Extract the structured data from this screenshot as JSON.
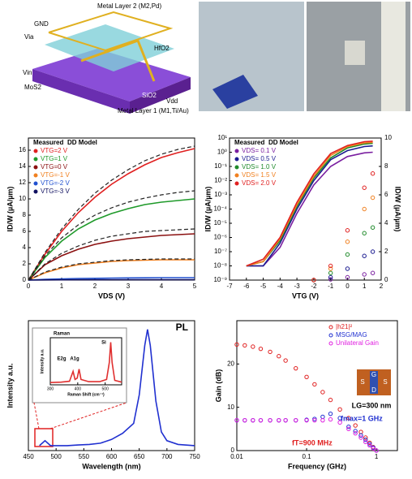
{
  "diagram": {
    "labels": [
      "Metal Layer 2 (M2,Pd)",
      "GND",
      "Via",
      "HfO2",
      "Vin",
      "MoS2",
      "SiO2",
      "Vdd",
      "Metal Layer 1 (M1,Ti/Au)"
    ]
  },
  "chart_data": [
    {
      "type": "line",
      "xlabel": "VDS (V)",
      "ylabel": "ID/W (µA/µm)",
      "legend": "upper left",
      "legend_headers": [
        "Measured",
        "DD Model"
      ],
      "x": [
        0,
        0.5,
        1,
        1.5,
        2,
        2.5,
        3,
        3.5,
        4,
        4.5,
        5
      ],
      "xlim": [
        0,
        5
      ],
      "xticks": [
        0,
        1,
        2,
        3,
        4,
        5
      ],
      "ylim": [
        0,
        17.5
      ],
      "yticks": [
        0,
        2,
        4,
        6,
        8,
        10,
        12,
        14,
        16
      ],
      "series": [
        {
          "name": "VTG=2 V",
          "color": "#e02020",
          "style": "solid",
          "values": [
            0,
            3.2,
            6,
            8.3,
            10.2,
            11.8,
            13.1,
            14.2,
            15.1,
            15.7,
            16.2
          ]
        },
        {
          "name": "VTG=1 V",
          "color": "#1f9a2a",
          "style": "solid",
          "values": [
            0,
            2.8,
            4.8,
            6.3,
            7.4,
            8.2,
            8.8,
            9.3,
            9.6,
            9.8,
            10
          ]
        },
        {
          "name": "VTG=0 V",
          "color": "#8b1010",
          "style": "solid",
          "values": [
            0,
            1.9,
            3,
            3.8,
            4.4,
            4.8,
            5.1,
            5.3,
            5.5,
            5.6,
            5.7
          ]
        },
        {
          "name": "VTG=-1 V",
          "color": "#f08020",
          "style": "solid",
          "values": [
            0,
            0.9,
            1.5,
            1.9,
            2.1,
            2.3,
            2.4,
            2.45,
            2.5,
            2.5,
            2.5
          ]
        },
        {
          "name": "VTG=-2 V",
          "color": "#2050d0",
          "style": "solid",
          "values": [
            0,
            0.1,
            0.15,
            0.2,
            0.22,
            0.25,
            0.27,
            0.28,
            0.3,
            0.3,
            0.3
          ]
        },
        {
          "name": "VTG=-3 V",
          "color": "#101060",
          "style": "solid",
          "values": [
            0,
            0.02,
            0.03,
            0.04,
            0.04,
            0.05,
            0.05,
            0.05,
            0.05,
            0.05,
            0.05
          ]
        },
        {
          "color": "#222222",
          "style": "dashed",
          "values": [
            0,
            3.4,
            6.3,
            8.7,
            10.7,
            12.3,
            13.6,
            14.7,
            15.5,
            16.1,
            16.5
          ]
        },
        {
          "color": "#222222",
          "style": "dashed",
          "values": [
            0,
            3,
            5.2,
            6.8,
            8,
            8.9,
            9.6,
            10.1,
            10.5,
            10.8,
            11
          ]
        },
        {
          "color": "#222222",
          "style": "dashed",
          "values": [
            0,
            2,
            3.3,
            4.2,
            4.9,
            5.4,
            5.7,
            6,
            6.1,
            6.2,
            6.3
          ]
        },
        {
          "color": "#222222",
          "style": "dashed",
          "values": [
            0,
            1,
            1.6,
            2,
            2.2,
            2.4,
            2.5,
            2.55,
            2.6,
            2.6,
            2.6
          ]
        }
      ]
    },
    {
      "type": "line",
      "xlabel": "VTG (V)",
      "ylabel": "ID/W (µA/µm)",
      "y2label": "ID/W (µA/µm)",
      "ylog": true,
      "legend": "upper left",
      "legend_headers": [
        "Measured",
        "DD Model"
      ],
      "x": [
        -6,
        -5,
        -4,
        -3,
        -2,
        -1,
        0,
        1,
        1.5
      ],
      "xlim": [
        -7,
        2
      ],
      "xticks": [
        -7,
        -6,
        -5,
        -4,
        -3,
        -2,
        -1,
        0,
        1,
        2
      ],
      "ylim": [
        1e-09,
        10
      ],
      "yticks": [
        {
          "value": 10,
          "label": "10¹"
        },
        {
          "value": 1,
          "label": "10⁰"
        },
        {
          "value": 0.1,
          "label": "10⁻¹"
        },
        {
          "value": 0.01,
          "label": "10⁻²"
        },
        {
          "value": 0.001,
          "label": "10⁻³"
        },
        {
          "value": 0.0001,
          "label": "10⁻⁴"
        },
        {
          "value": 1e-05,
          "label": "10⁻⁵"
        },
        {
          "value": 1e-06,
          "label": "10⁻⁶"
        },
        {
          "value": 1e-07,
          "label": "10⁻⁷"
        },
        {
          "value": 1e-08,
          "label": "10⁻⁸"
        },
        {
          "value": 1e-09,
          "label": "10⁻⁹"
        }
      ],
      "y2lim": [
        0,
        10
      ],
      "y2ticks": [
        0,
        2,
        4,
        6,
        8,
        10
      ],
      "series": [
        {
          "name": "VDS= 0.1 V",
          "color": "#7a1fa0",
          "style": "solid",
          "values": [
            1e-08,
            1e-08,
            2e-07,
            5e-05,
            0.005,
            0.1,
            0.5,
            0.9,
            1
          ]
        },
        {
          "name": "VDS= 0.5 V",
          "color": "#1a1a90",
          "style": "solid",
          "values": [
            1e-08,
            1e-08,
            4e-07,
            0.0001,
            0.01,
            0.3,
            1.3,
            2.5,
            2.8
          ]
        },
        {
          "name": "VDS= 1.0 V",
          "color": "#1f8a2a",
          "style": "solid",
          "values": [
            1e-08,
            2e-08,
            6e-07,
            0.00015,
            0.015,
            0.4,
            2,
            3.8,
            4.2
          ]
        },
        {
          "name": "VDS= 1.5 V",
          "color": "#f08020",
          "style": "solid",
          "values": [
            1e-08,
            2e-08,
            8e-07,
            0.0002,
            0.02,
            0.6,
            2.5,
            4.5,
            5
          ]
        },
        {
          "name": "VDS= 2.0 V",
          "color": "#e02020",
          "style": "solid",
          "values": [
            1e-08,
            3e-08,
            1e-06,
            0.0003,
            0.03,
            0.8,
            3,
            5.5,
            6
          ]
        },
        {
          "color": "#7a1fa0",
          "style": "circles",
          "axis": "y2",
          "x": [
            -2,
            -1,
            0,
            1,
            1.5
          ],
          "values": [
            0,
            0.05,
            0.2,
            0.4,
            0.5
          ]
        },
        {
          "color": "#1a1a90",
          "style": "circles",
          "axis": "y2",
          "x": [
            -2,
            -1,
            0,
            1,
            1.5
          ],
          "values": [
            0,
            0.2,
            0.8,
            1.7,
            2
          ]
        },
        {
          "color": "#1f8a2a",
          "style": "circles",
          "axis": "y2",
          "x": [
            -2,
            -1,
            0,
            1,
            1.5
          ],
          "values": [
            0,
            0.5,
            1.8,
            3.3,
            3.7
          ]
        },
        {
          "color": "#f08020",
          "style": "circles",
          "axis": "y2",
          "x": [
            -2,
            -1,
            0,
            1,
            1.5
          ],
          "values": [
            0,
            0.8,
            2.7,
            5,
            5.8
          ]
        },
        {
          "color": "#e02020",
          "style": "circles",
          "axis": "y2",
          "x": [
            -2,
            -1,
            0,
            1,
            1.5
          ],
          "values": [
            0,
            1,
            3.5,
            6.5,
            7.5
          ]
        }
      ]
    },
    {
      "type": "line",
      "xlabel": "Wavelength (nm)",
      "ylabel": "Intensity a.u.",
      "annotations": [
        {
          "text": "PL",
          "color": "#000000"
        }
      ],
      "x": [
        470,
        480,
        490,
        500,
        520,
        540,
        560,
        580,
        600,
        620,
        640,
        650,
        660,
        665,
        670,
        680,
        690,
        700,
        720,
        750
      ],
      "xlim": [
        450,
        750
      ],
      "xticks": [
        450,
        500,
        550,
        600,
        650,
        700,
        750
      ],
      "ylim": [
        0,
        1.05
      ],
      "series": [
        {
          "color": "#2030d0",
          "style": "solid",
          "values": [
            0.04,
            0.08,
            0.04,
            0.04,
            0.04,
            0.045,
            0.05,
            0.06,
            0.09,
            0.14,
            0.22,
            0.45,
            0.85,
            0.98,
            0.85,
            0.4,
            0.15,
            0.08,
            0.05,
            0.04
          ]
        }
      ]
    },
    {
      "type": "line",
      "xlabel": "Raman Shift (cm⁻¹)",
      "ylabel": "Intensity a.u.",
      "annotations": [
        {
          "text": "Raman",
          "color": "#000000"
        },
        {
          "text": "E2g",
          "color": "#000000"
        },
        {
          "text": "A1g",
          "color": "#000000"
        },
        {
          "text": "Si",
          "color": "#000000"
        }
      ],
      "x": [
        300,
        340,
        370,
        383,
        390,
        398,
        405,
        412,
        440,
        480,
        505,
        515,
        520,
        525,
        535,
        560
      ],
      "xlim": [
        300,
        560
      ],
      "xticks": [
        300,
        400,
        500
      ],
      "ylim": [
        0,
        1.05
      ],
      "series": [
        {
          "color": "#e03030",
          "style": "solid",
          "values": [
            0.05,
            0.06,
            0.08,
            0.3,
            0.12,
            0.15,
            0.35,
            0.12,
            0.07,
            0.07,
            0.12,
            0.5,
            0.95,
            0.5,
            0.1,
            0.06
          ]
        }
      ]
    },
    {
      "type": "line",
      "xlabel": "Frequency (GHz)",
      "ylabel": "Gain (dB)",
      "xlog": true,
      "legend": "upper right",
      "inset_labels": [
        "G",
        "S",
        "S",
        "D"
      ],
      "annotations": [
        {
          "text": "LG=300 nm",
          "color": "#000000"
        },
        {
          "text": "fmax=1 GHz",
          "color": "#2030d0"
        },
        {
          "text": "fT=900 MHz",
          "color": "#e02020"
        }
      ],
      "x": [
        0.01,
        0.013,
        0.017,
        0.022,
        0.03,
        0.04,
        0.05,
        0.07,
        0.1,
        0.13,
        0.17,
        0.22,
        0.3,
        0.4,
        0.5,
        0.6,
        0.7,
        0.8,
        0.9,
        1.0
      ],
      "xlim": [
        0.01,
        2
      ],
      "xticks": [
        0.01,
        0.1,
        1
      ],
      "ylim": [
        0,
        30
      ],
      "yticks": [
        0,
        10,
        20
      ],
      "series": [
        {
          "name": "|h21|²",
          "color": "#e02020",
          "style": "circles",
          "values": [
            24.5,
            24.3,
            24,
            23.5,
            22.8,
            21.8,
            20.8,
            19,
            17,
            15.3,
            13.5,
            11.7,
            9.5,
            7.5,
            5.8,
            4.3,
            3,
            1.8,
            0.8,
            null
          ]
        },
        {
          "name": "MSG/MAG",
          "color": "#2030d0",
          "style": "circles",
          "values": [
            7,
            7,
            7,
            7,
            7,
            7,
            7,
            7,
            7.1,
            7.3,
            7.8,
            8.5,
            7.5,
            5.5,
            4.5,
            3.5,
            2.5,
            1.5,
            0.7,
            0
          ]
        },
        {
          "name": "Unilateral Gain",
          "color": "#e020e0",
          "style": "circles",
          "values": [
            7,
            7,
            7,
            7,
            7,
            7,
            7,
            7,
            7,
            7,
            7,
            7.2,
            6.5,
            5,
            4,
            3,
            2,
            1.2,
            0.5,
            0
          ]
        }
      ]
    }
  ]
}
